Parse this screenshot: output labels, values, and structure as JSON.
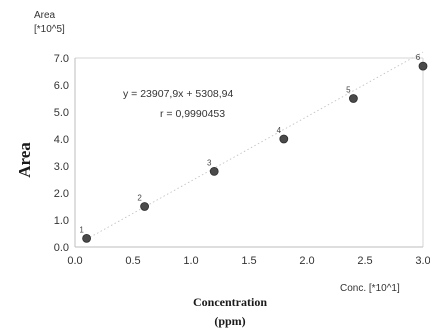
{
  "chart_data": {
    "type": "scatter",
    "y_unit_title": "Area",
    "y_unit_scale": "[*10^5]",
    "x_unit_label": "Conc. [*10^1]",
    "ylabel": "Area",
    "xlabel_line1": "Concentration",
    "xlabel_line2": "(ppm)",
    "equation": "y = 23907,9x + 5308,94",
    "r_text": "r = 0,9990453",
    "xlim": [
      0.0,
      3.0
    ],
    "ylim": [
      0.0,
      7.0
    ],
    "x_ticks": [
      "0.0",
      "0.5",
      "1.0",
      "1.5",
      "2.0",
      "2.5",
      "3.0"
    ],
    "y_ticks": [
      "0.0",
      "1.0",
      "2.0",
      "3.0",
      "4.0",
      "5.0",
      "6.0",
      "7.0"
    ],
    "points": [
      {
        "label": "1",
        "x": 0.1,
        "y": 0.32
      },
      {
        "label": "2",
        "x": 0.6,
        "y": 1.5
      },
      {
        "label": "3",
        "x": 1.2,
        "y": 2.8
      },
      {
        "label": "4",
        "x": 1.8,
        "y": 4.0
      },
      {
        "label": "5",
        "x": 2.4,
        "y": 5.5
      },
      {
        "label": "6",
        "x": 3.0,
        "y": 6.7
      }
    ],
    "regression": {
      "x": [
        0.1,
        3.0
      ],
      "y": [
        0.29,
        7.22
      ]
    },
    "grid": false,
    "legend": "none"
  }
}
